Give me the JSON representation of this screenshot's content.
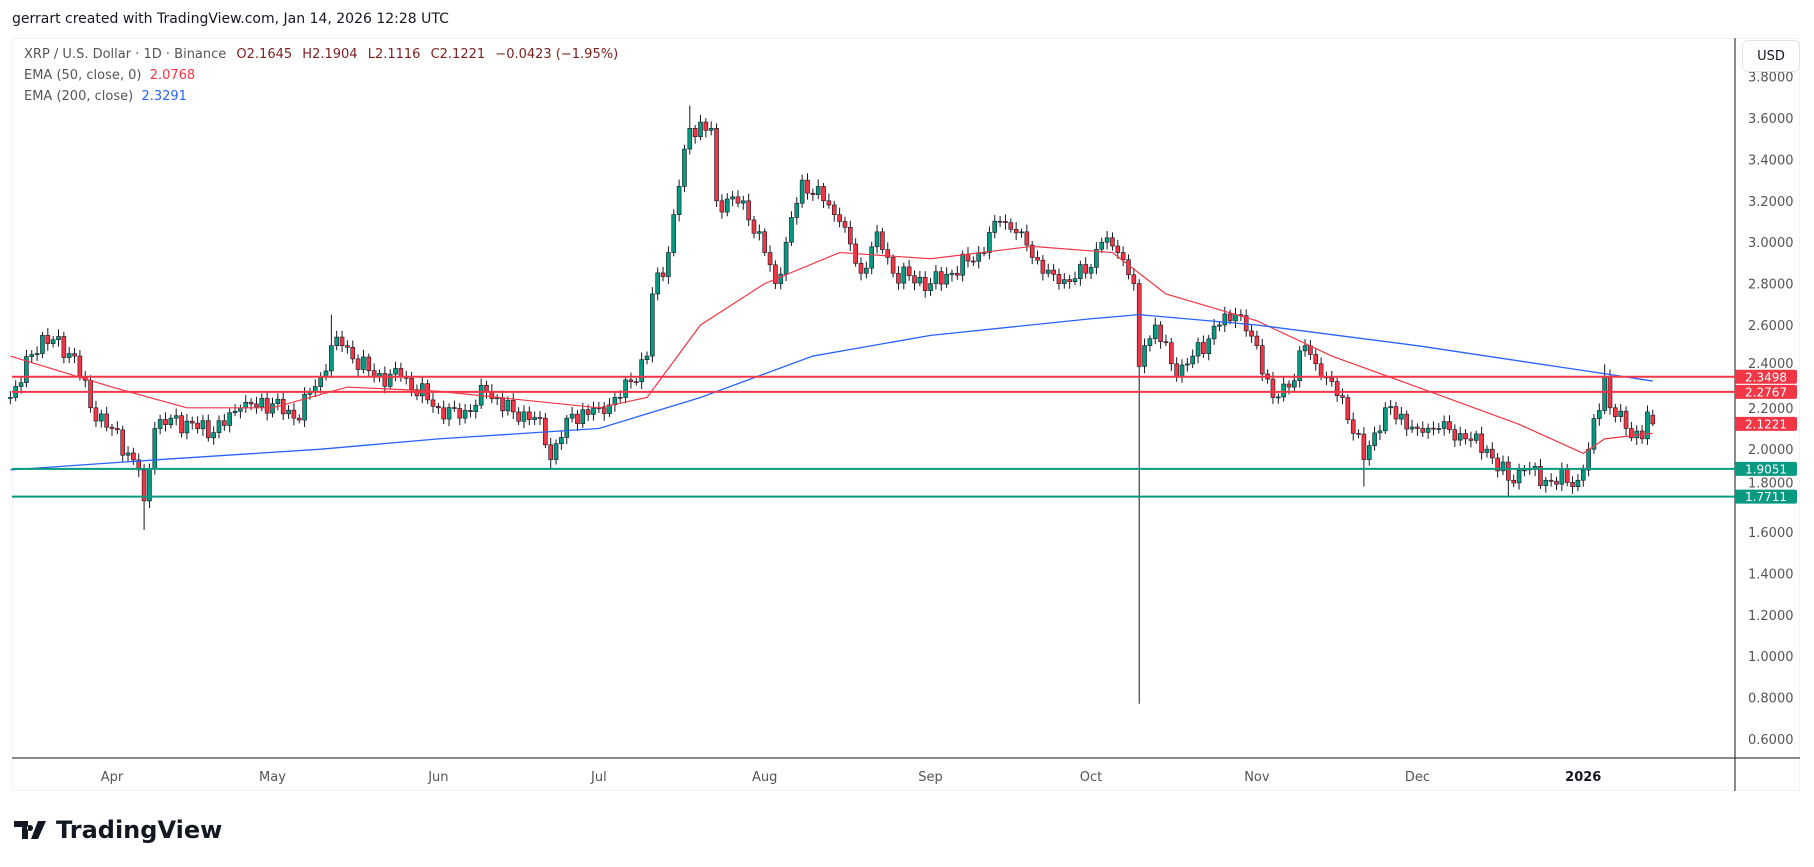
{
  "header": {
    "attribution": "gerrart created with TradingView.com, Jan 14, 2026 12:28 UTC"
  },
  "legend": {
    "symbol": "XRP / U.S. Dollar · 1D · Binance",
    "open": "O2.1645",
    "high": "H2.1904",
    "low": "L2.1116",
    "close": "C2.1221",
    "change": "−0.0423 (−1.95%)",
    "ema50_label": "EMA (50, close, 0)",
    "ema50_value": "2.0768",
    "ema200_label": "EMA (200, close)",
    "ema200_value": "2.3291"
  },
  "currency": "USD",
  "brand": "TradingView",
  "colors": {
    "up": "#089981",
    "down": "#F23645",
    "ema50": "#F23645",
    "ema200": "#2962FF",
    "resistance": "#F23645",
    "support": "#089981"
  },
  "chart_data": {
    "type": "candlestick",
    "ylim": [
      0.5,
      3.85
    ],
    "y_ticks": [
      "0.6000",
      "0.8000",
      "1.0000",
      "1.2000",
      "1.4000",
      "1.6000",
      "1.8000",
      "2.0000",
      "2.2000",
      "2.4000",
      "2.6000",
      "2.8000",
      "3.0000",
      "3.2000",
      "3.4000",
      "3.6000",
      "3.8000"
    ],
    "x_ticks": [
      {
        "label": "Apr",
        "date": "2025-04-01"
      },
      {
        "label": "May",
        "date": "2025-05-01"
      },
      {
        "label": "Jun",
        "date": "2025-06-01"
      },
      {
        "label": "Jul",
        "date": "2025-07-01"
      },
      {
        "label": "Aug",
        "date": "2025-08-01"
      },
      {
        "label": "Sep",
        "date": "2025-09-01"
      },
      {
        "label": "Oct",
        "date": "2025-10-01"
      },
      {
        "label": "Nov",
        "date": "2025-11-01"
      },
      {
        "label": "Dec",
        "date": "2025-12-01"
      },
      {
        "label": "2026",
        "date": "2026-01-01"
      }
    ],
    "close_path": [
      [
        "2025-03-13",
        2.25
      ],
      [
        "2025-03-19",
        2.55
      ],
      [
        "2025-03-25",
        2.45
      ],
      [
        "2025-03-28",
        2.2
      ],
      [
        "2025-04-01",
        2.1
      ],
      [
        "2025-04-06",
        1.9
      ],
      [
        "2025-04-07",
        1.75
      ],
      [
        "2025-04-09",
        2.1
      ],
      [
        "2025-04-12",
        2.15
      ],
      [
        "2025-04-20",
        2.08
      ],
      [
        "2025-04-25",
        2.2
      ],
      [
        "2025-05-01",
        2.22
      ],
      [
        "2025-05-05",
        2.15
      ],
      [
        "2025-05-10",
        2.35
      ],
      [
        "2025-05-12",
        2.5
      ],
      [
        "2025-05-14",
        2.5
      ],
      [
        "2025-05-20",
        2.35
      ],
      [
        "2025-05-25",
        2.35
      ],
      [
        "2025-06-01",
        2.2
      ],
      [
        "2025-06-05",
        2.15
      ],
      [
        "2025-06-10",
        2.28
      ],
      [
        "2025-06-15",
        2.18
      ],
      [
        "2025-06-20",
        2.15
      ],
      [
        "2025-06-22",
        1.95
      ],
      [
        "2025-06-25",
        2.15
      ],
      [
        "2025-07-01",
        2.2
      ],
      [
        "2025-07-05",
        2.25
      ],
      [
        "2025-07-10",
        2.45
      ],
      [
        "2025-07-11",
        2.75
      ],
      [
        "2025-07-14",
        2.95
      ],
      [
        "2025-07-17",
        3.45
      ],
      [
        "2025-07-18",
        3.55
      ],
      [
        "2025-07-22",
        3.55
      ],
      [
        "2025-07-23",
        3.2
      ],
      [
        "2025-07-28",
        3.2
      ],
      [
        "2025-08-01",
        2.95
      ],
      [
        "2025-08-03",
        2.8
      ],
      [
        "2025-08-05",
        3.0
      ],
      [
        "2025-08-08",
        3.3
      ],
      [
        "2025-08-12",
        3.2
      ],
      [
        "2025-08-15",
        3.1
      ],
      [
        "2025-08-19",
        2.85
      ],
      [
        "2025-08-22",
        3.05
      ],
      [
        "2025-08-25",
        2.85
      ],
      [
        "2025-09-01",
        2.8
      ],
      [
        "2025-09-05",
        2.85
      ],
      [
        "2025-09-10",
        2.95
      ],
      [
        "2025-09-14",
        3.1
      ],
      [
        "2025-09-18",
        3.05
      ],
      [
        "2025-09-22",
        2.85
      ],
      [
        "2025-09-25",
        2.8
      ],
      [
        "2025-09-30",
        2.85
      ],
      [
        "2025-10-03",
        3.0
      ],
      [
        "2025-10-06",
        2.95
      ],
      [
        "2025-10-09",
        2.8
      ],
      [
        "2025-10-10",
        2.4
      ],
      [
        "2025-10-11",
        2.5
      ],
      [
        "2025-10-13",
        2.6
      ],
      [
        "2025-10-17",
        2.35
      ],
      [
        "2025-10-20",
        2.45
      ],
      [
        "2025-10-25",
        2.6
      ],
      [
        "2025-10-28",
        2.65
      ],
      [
        "2025-11-01",
        2.5
      ],
      [
        "2025-11-04",
        2.25
      ],
      [
        "2025-11-07",
        2.3
      ],
      [
        "2025-11-10",
        2.5
      ],
      [
        "2025-11-13",
        2.35
      ],
      [
        "2025-11-17",
        2.25
      ],
      [
        "2025-11-21",
        1.95
      ],
      [
        "2025-11-25",
        2.2
      ],
      [
        "2025-12-01",
        2.1
      ],
      [
        "2025-12-05",
        2.1
      ],
      [
        "2025-12-10",
        2.05
      ],
      [
        "2025-12-14",
        2.0
      ],
      [
        "2025-12-18",
        1.85
      ],
      [
        "2025-12-21",
        1.9
      ],
      [
        "2025-12-25",
        1.85
      ],
      [
        "2025-12-31",
        1.85
      ],
      [
        "2026-01-02",
        2.0
      ],
      [
        "2026-01-05",
        2.35
      ],
      [
        "2026-01-06",
        2.2
      ],
      [
        "2026-01-09",
        2.1
      ],
      [
        "2026-01-12",
        2.05
      ],
      [
        "2026-01-13",
        2.18
      ],
      [
        "2026-01-14",
        2.1221
      ]
    ],
    "wick_extremes": [
      {
        "date": "2025-04-07",
        "low": 1.61
      },
      {
        "date": "2025-05-12",
        "high": 2.65
      },
      {
        "date": "2025-06-22",
        "low": 1.9
      },
      {
        "date": "2025-07-18",
        "high": 3.66
      },
      {
        "date": "2025-10-10",
        "low": 0.77
      },
      {
        "date": "2025-11-21",
        "low": 1.82
      },
      {
        "date": "2025-12-18",
        "low": 1.77
      },
      {
        "date": "2026-01-05",
        "high": 2.41
      },
      {
        "date": "2026-01-14",
        "open": 2.1645,
        "high": 2.1904,
        "low": 2.1116
      }
    ],
    "ema50": [
      [
        "2025-03-13",
        2.45
      ],
      [
        "2025-04-01",
        2.3
      ],
      [
        "2025-04-15",
        2.2
      ],
      [
        "2025-05-01",
        2.2
      ],
      [
        "2025-05-15",
        2.3
      ],
      [
        "2025-06-01",
        2.28
      ],
      [
        "2025-07-01",
        2.2
      ],
      [
        "2025-07-10",
        2.25
      ],
      [
        "2025-07-20",
        2.6
      ],
      [
        "2025-08-01",
        2.8
      ],
      [
        "2025-08-15",
        2.95
      ],
      [
        "2025-09-01",
        2.92
      ],
      [
        "2025-09-20",
        2.98
      ],
      [
        "2025-10-05",
        2.95
      ],
      [
        "2025-10-15",
        2.75
      ],
      [
        "2025-11-01",
        2.62
      ],
      [
        "2025-11-15",
        2.45
      ],
      [
        "2025-12-01",
        2.3
      ],
      [
        "2025-12-20",
        2.12
      ],
      [
        "2026-01-01",
        1.98
      ],
      [
        "2026-01-05",
        2.05
      ],
      [
        "2026-01-14",
        2.0768
      ]
    ],
    "ema200": [
      [
        "2025-03-13",
        1.9
      ],
      [
        "2025-04-10",
        1.95
      ],
      [
        "2025-05-10",
        2.0
      ],
      [
        "2025-06-01",
        2.05
      ],
      [
        "2025-07-01",
        2.1
      ],
      [
        "2025-07-20",
        2.25
      ],
      [
        "2025-08-10",
        2.45
      ],
      [
        "2025-09-01",
        2.55
      ],
      [
        "2025-10-01",
        2.63
      ],
      [
        "2025-10-10",
        2.65
      ],
      [
        "2025-11-01",
        2.6
      ],
      [
        "2025-12-01",
        2.5
      ],
      [
        "2026-01-01",
        2.38
      ],
      [
        "2026-01-14",
        2.3291
      ]
    ],
    "horizontal_lines": [
      {
        "price": 2.3498,
        "label": "2.3498",
        "kind": "resistance"
      },
      {
        "price": 2.2767,
        "label": "2.2767",
        "kind": "resistance"
      },
      {
        "price": 1.9051,
        "label": "1.9051",
        "kind": "support"
      },
      {
        "price": 1.7711,
        "label": "1.7711",
        "kind": "support"
      }
    ],
    "last_price": {
      "price": 2.1221,
      "label": "2.1221"
    }
  }
}
